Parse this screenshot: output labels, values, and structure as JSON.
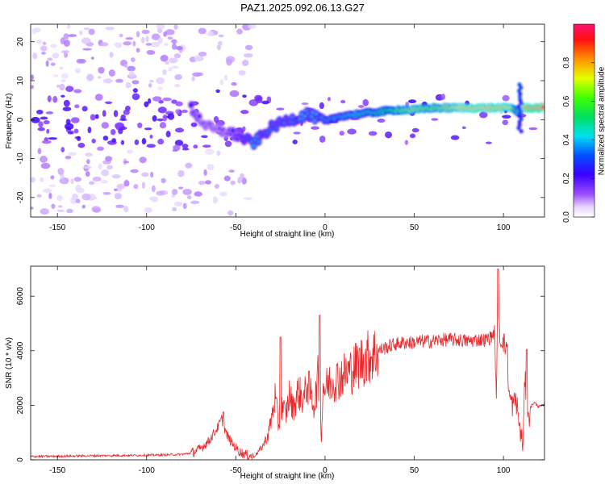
{
  "figure": {
    "title": "PAZ1.2025.092.06.13.G27"
  },
  "chart_data": [
    {
      "type": "heatmap",
      "title": "PAZ1.2025.092.06.13.G27",
      "xlabel": "Height of straight line (km)",
      "ylabel": "Frequency (Hz)",
      "xlim": [
        -165,
        123
      ],
      "ylim": [
        -25,
        24.5
      ],
      "xticks": [
        -150,
        -100,
        -50,
        0,
        50,
        100
      ],
      "yticks": [
        -20,
        -10,
        0,
        10,
        20
      ],
      "colorbar": {
        "label": "Normalized spectral amplitude",
        "range": [
          0,
          1
        ],
        "ticks": [
          "0.0",
          "0.2",
          "0.4",
          "0.6",
          "0.8"
        ],
        "tick_values": [
          0.0,
          0.2,
          0.4,
          0.6,
          0.8
        ],
        "colormap": "rainbow (white-violet-blue-cyan-green-yellow-orange-red-pink)"
      },
      "ridge": {
        "description": "dominant frequency ridge vs height",
        "x": [
          -75,
          -70,
          -65,
          -60,
          -55,
          -50,
          -45,
          -40,
          -35,
          -30,
          -25,
          -20,
          -15,
          -10,
          -5,
          0,
          10,
          20,
          30,
          40,
          50,
          60,
          70,
          80,
          90,
          100,
          105,
          108,
          110,
          115,
          123
        ],
        "y": [
          3,
          0,
          -2,
          -3,
          -3,
          -4,
          -5,
          -6,
          -4,
          -2,
          -1,
          0,
          0.5,
          1.5,
          0.5,
          -0.5,
          1,
          1.5,
          2,
          2.5,
          2.5,
          3,
          3,
          3,
          3,
          3,
          3,
          2,
          3,
          3,
          3
        ],
        "amplitude": [
          0.25,
          0.2,
          0.2,
          0.2,
          0.2,
          0.25,
          0.3,
          0.4,
          0.35,
          0.35,
          0.35,
          0.35,
          0.4,
          0.4,
          0.4,
          0.45,
          0.5,
          0.55,
          0.6,
          0.75,
          0.85,
          0.8,
          0.85,
          0.95,
          0.95,
          0.95,
          0.9,
          0.5,
          0.9,
          1.0,
          1.0
        ]
      }
    },
    {
      "type": "line",
      "title": "",
      "xlabel": "Height of straight line (km)",
      "ylabel": "SNR (10 * v/v)",
      "xlim": [
        -165,
        123
      ],
      "ylim": [
        0,
        7100
      ],
      "xticks": [
        -150,
        -100,
        -50,
        0,
        50,
        100
      ],
      "yticks": [
        0,
        2000,
        4000,
        6000
      ],
      "series": [
        {
          "color": "#e8282a",
          "x": [
            -165,
            -150,
            -130,
            -110,
            -90,
            -80,
            -75,
            -70,
            -65,
            -60,
            -58,
            -55,
            -52,
            -48,
            -45,
            -42,
            -40,
            -38,
            -35,
            -32,
            -30,
            -28,
            -26,
            -24,
            -22,
            -20,
            -18,
            -15,
            -12,
            -10,
            -8,
            -6,
            -4,
            -2,
            -1,
            0,
            2,
            5,
            10,
            15,
            20,
            25,
            30,
            35,
            40,
            45,
            50,
            55,
            60,
            65,
            70,
            75,
            80,
            85,
            90,
            93,
            95,
            96,
            97,
            98,
            100,
            101,
            102,
            103,
            105,
            107,
            108,
            109,
            110,
            111,
            112,
            113,
            114,
            115,
            117,
            120,
            123
          ],
          "y": [
            120,
            130,
            150,
            160,
            180,
            200,
            250,
            400,
            700,
            1200,
            1500,
            900,
            600,
            300,
            200,
            150,
            100,
            250,
            500,
            900,
            1500,
            2300,
            1200,
            2000,
            1600,
            2400,
            1900,
            2500,
            2200,
            2800,
            2400,
            2000,
            3000,
            900,
            2800,
            2600,
            2800,
            2900,
            3100,
            3300,
            3600,
            3800,
            4000,
            4150,
            4250,
            4300,
            4300,
            4350,
            4350,
            4400,
            4400,
            4400,
            4350,
            4400,
            4400,
            4500,
            4700,
            2300,
            6700,
            4300,
            4350,
            4100,
            4300,
            2400,
            2000,
            2200,
            1800,
            1200,
            800,
            600,
            3000,
            2200,
            1400,
            1900,
            2100,
            1950,
            2000
          ]
        }
      ],
      "spikes": [
        {
          "x": -57,
          "y": 1750
        },
        {
          "x": -25,
          "y": 4500
        },
        {
          "x": -3,
          "y": 5300
        },
        {
          "x": 97,
          "y": 7000
        },
        {
          "x": 113,
          "y": 4050
        }
      ]
    }
  ]
}
